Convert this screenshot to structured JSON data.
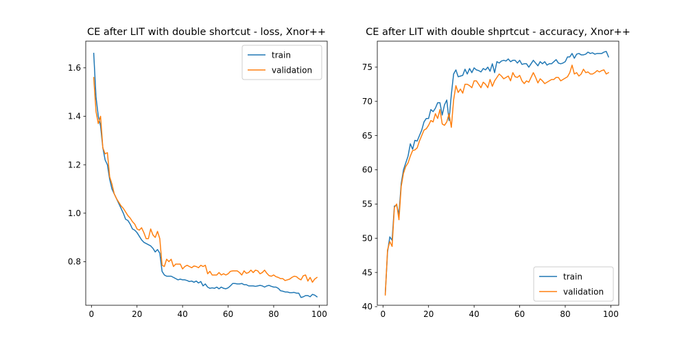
{
  "colors": {
    "train": "#1f77b4",
    "validation": "#ff7f0e",
    "axes": "#000000",
    "legend_border": "#cccccc"
  },
  "chart_data": [
    {
      "type": "line",
      "title": "CE after LIT with double shortcut - loss, Xnor++",
      "xlabel": "",
      "ylabel": "",
      "xlim": [
        -2.5,
        103.5
      ],
      "ylim": [
        0.62,
        1.71
      ],
      "xticks": [
        0,
        20,
        40,
        60,
        80,
        100
      ],
      "yticks": [
        0.8,
        1.0,
        1.2,
        1.4,
        1.6
      ],
      "ytick_labels": [
        "0.8",
        "1.0",
        "1.2",
        "1.4",
        "1.6"
      ],
      "grid": false,
      "legend_position": "top-right",
      "series": [
        {
          "name": "train",
          "x": [
            1,
            2,
            3,
            4,
            5,
            6,
            7,
            8,
            9,
            10,
            11,
            12,
            13,
            14,
            15,
            16,
            17,
            18,
            19,
            20,
            21,
            22,
            23,
            24,
            25,
            26,
            27,
            28,
            29,
            30,
            31,
            32,
            33,
            34,
            35,
            36,
            37,
            38,
            39,
            40,
            41,
            42,
            43,
            44,
            45,
            46,
            47,
            48,
            49,
            50,
            51,
            52,
            53,
            54,
            55,
            56,
            57,
            58,
            59,
            60,
            61,
            62,
            63,
            64,
            65,
            66,
            67,
            68,
            69,
            70,
            71,
            72,
            73,
            74,
            75,
            76,
            77,
            78,
            79,
            80,
            81,
            82,
            83,
            84,
            85,
            86,
            87,
            88,
            89,
            90,
            91,
            92,
            93,
            94,
            95,
            96,
            97,
            98,
            99
          ],
          "y": [
            1.66,
            1.48,
            1.4,
            1.36,
            1.27,
            1.22,
            1.2,
            1.14,
            1.1,
            1.08,
            1.06,
            1.04,
            1.02,
            1.0,
            0.975,
            0.97,
            0.955,
            0.935,
            0.93,
            0.92,
            0.905,
            0.89,
            0.88,
            0.875,
            0.87,
            0.865,
            0.855,
            0.84,
            0.85,
            0.835,
            0.76,
            0.745,
            0.74,
            0.74,
            0.74,
            0.735,
            0.73,
            0.725,
            0.728,
            0.725,
            0.725,
            0.722,
            0.718,
            0.72,
            0.715,
            0.72,
            0.712,
            0.718,
            0.7,
            0.708,
            0.695,
            0.69,
            0.692,
            0.69,
            0.695,
            0.688,
            0.695,
            0.69,
            0.688,
            0.692,
            0.7,
            0.71,
            0.71,
            0.708,
            0.708,
            0.71,
            0.705,
            0.705,
            0.7,
            0.7,
            0.7,
            0.698,
            0.7,
            0.702,
            0.7,
            0.695,
            0.7,
            0.702,
            0.698,
            0.695,
            0.695,
            0.69,
            0.68,
            0.678,
            0.675,
            0.675,
            0.672,
            0.672,
            0.673,
            0.67,
            0.67,
            0.652,
            0.655,
            0.66,
            0.66,
            0.655,
            0.665,
            0.662,
            0.655
          ]
        },
        {
          "name": "validation",
          "x": [
            1,
            2,
            3,
            4,
            5,
            6,
            7,
            8,
            9,
            10,
            11,
            12,
            13,
            14,
            15,
            16,
            17,
            18,
            19,
            20,
            21,
            22,
            23,
            24,
            25,
            26,
            27,
            28,
            29,
            30,
            31,
            32,
            33,
            34,
            35,
            36,
            37,
            38,
            39,
            40,
            41,
            42,
            43,
            44,
            45,
            46,
            47,
            48,
            49,
            50,
            51,
            52,
            53,
            54,
            55,
            56,
            57,
            58,
            59,
            60,
            61,
            62,
            63,
            64,
            65,
            66,
            67,
            68,
            69,
            70,
            71,
            72,
            73,
            74,
            75,
            76,
            77,
            78,
            79,
            80,
            81,
            82,
            83,
            84,
            85,
            86,
            87,
            88,
            89,
            90,
            91,
            92,
            93,
            94,
            95,
            96,
            97,
            98,
            99
          ],
          "y": [
            1.56,
            1.42,
            1.37,
            1.4,
            1.27,
            1.245,
            1.25,
            1.15,
            1.12,
            1.08,
            1.06,
            1.045,
            1.03,
            1.02,
            1.005,
            0.99,
            0.98,
            0.965,
            0.955,
            0.935,
            0.93,
            0.94,
            0.92,
            0.895,
            0.895,
            0.935,
            0.91,
            0.9,
            0.925,
            0.895,
            0.785,
            0.78,
            0.81,
            0.8,
            0.81,
            0.78,
            0.79,
            0.79,
            0.79,
            0.77,
            0.78,
            0.785,
            0.78,
            0.775,
            0.782,
            0.78,
            0.775,
            0.785,
            0.78,
            0.785,
            0.75,
            0.76,
            0.745,
            0.745,
            0.745,
            0.755,
            0.745,
            0.75,
            0.745,
            0.75,
            0.76,
            0.762,
            0.762,
            0.762,
            0.755,
            0.745,
            0.762,
            0.752,
            0.755,
            0.765,
            0.755,
            0.765,
            0.762,
            0.75,
            0.755,
            0.765,
            0.752,
            0.742,
            0.74,
            0.745,
            0.738,
            0.735,
            0.73,
            0.73,
            0.722,
            0.725,
            0.728,
            0.735,
            0.74,
            0.738,
            0.73,
            0.725,
            0.742,
            0.745,
            0.72,
            0.735,
            0.715,
            0.728,
            0.735
          ]
        }
      ]
    },
    {
      "type": "line",
      "title": "CE after LIT with double shprtcut - accuracy, Xnor++",
      "xlabel": "",
      "ylabel": "",
      "xlim": [
        -2.5,
        103.5
      ],
      "ylim": [
        40.2,
        78.8
      ],
      "xticks": [
        0,
        20,
        40,
        60,
        80,
        100
      ],
      "yticks": [
        40,
        45,
        50,
        55,
        60,
        65,
        70,
        75
      ],
      "ytick_labels": [
        "40",
        "45",
        "50",
        "55",
        "60",
        "65",
        "70",
        "75"
      ],
      "grid": false,
      "legend_position": "bottom-right",
      "series": [
        {
          "name": "train",
          "x": [
            1,
            2,
            3,
            4,
            5,
            6,
            7,
            8,
            9,
            10,
            11,
            12,
            13,
            14,
            15,
            16,
            17,
            18,
            19,
            20,
            21,
            22,
            23,
            24,
            25,
            26,
            27,
            28,
            29,
            30,
            31,
            32,
            33,
            34,
            35,
            36,
            37,
            38,
            39,
            40,
            41,
            42,
            43,
            44,
            45,
            46,
            47,
            48,
            49,
            50,
            51,
            52,
            53,
            54,
            55,
            56,
            57,
            58,
            59,
            60,
            61,
            62,
            63,
            64,
            65,
            66,
            67,
            68,
            69,
            70,
            71,
            72,
            73,
            74,
            75,
            76,
            77,
            78,
            79,
            80,
            81,
            82,
            83,
            84,
            85,
            86,
            87,
            88,
            89,
            90,
            91,
            92,
            93,
            94,
            95,
            96,
            97,
            98,
            99
          ],
          "y": [
            41.9,
            48.0,
            50.2,
            49.7,
            54.7,
            54.8,
            53.5,
            58.0,
            60.0,
            61.0,
            62.0,
            63.8,
            63.0,
            64.3,
            64.2,
            65.0,
            65.8,
            67.0,
            67.5,
            67.5,
            68.8,
            68.5,
            69.0,
            69.8,
            69.8,
            68.0,
            69.5,
            70.2,
            67.2,
            71.0,
            74.0,
            74.6,
            73.6,
            73.7,
            73.8,
            74.7,
            74.0,
            74.8,
            74.2,
            74.9,
            74.6,
            74.5,
            74.3,
            74.8,
            74.6,
            75.0,
            74.4,
            75.5,
            74.2,
            75.8,
            75.6,
            75.9,
            76.0,
            75.9,
            76.2,
            75.8,
            76.0,
            76.0,
            75.6,
            76.0,
            75.4,
            75.5,
            75.5,
            75.0,
            75.5,
            76.0,
            75.6,
            75.2,
            75.8,
            75.5,
            75.8,
            75.3,
            75.5,
            75.5,
            75.8,
            76.1,
            75.6,
            75.5,
            75.6,
            75.8,
            76.5,
            76.5,
            77.0,
            76.3,
            76.9,
            77.0,
            76.8,
            76.8,
            76.9,
            77.2,
            77.0,
            77.1,
            76.9,
            77.0,
            77.0,
            77.0,
            77.2,
            77.3,
            76.5
          ]
        },
        {
          "name": "validation",
          "x": [
            1,
            2,
            3,
            4,
            5,
            6,
            7,
            8,
            9,
            10,
            11,
            12,
            13,
            14,
            15,
            16,
            17,
            18,
            19,
            20,
            21,
            22,
            23,
            24,
            25,
            26,
            27,
            28,
            29,
            30,
            31,
            32,
            33,
            34,
            35,
            36,
            37,
            38,
            39,
            40,
            41,
            42,
            43,
            44,
            45,
            46,
            47,
            48,
            49,
            50,
            51,
            52,
            53,
            54,
            55,
            56,
            57,
            58,
            59,
            60,
            61,
            62,
            63,
            64,
            65,
            66,
            67,
            68,
            69,
            70,
            71,
            72,
            73,
            74,
            75,
            76,
            77,
            78,
            79,
            80,
            81,
            82,
            83,
            84,
            85,
            86,
            87,
            88,
            89,
            90,
            91,
            92,
            93,
            94,
            95,
            96,
            97,
            98,
            99
          ],
          "y": [
            41.7,
            48.3,
            49.5,
            48.8,
            54.5,
            55.0,
            52.7,
            57.6,
            59.5,
            60.5,
            61.0,
            62.0,
            62.8,
            62.9,
            63.2,
            64.2,
            65.0,
            65.8,
            66.0,
            66.5,
            67.2,
            67.0,
            68.2,
            67.5,
            68.8,
            66.7,
            66.5,
            67.0,
            68.2,
            66.2,
            70.2,
            72.3,
            71.3,
            71.8,
            71.2,
            72.5,
            72.5,
            72.3,
            72.0,
            73.0,
            73.0,
            72.5,
            72.0,
            72.8,
            72.5,
            72.0,
            73.2,
            72.2,
            73.0,
            73.5,
            74.0,
            73.7,
            73.3,
            73.5,
            73.7,
            73.0,
            74.2,
            73.6,
            73.5,
            73.8,
            73.0,
            72.6,
            73.0,
            72.8,
            73.5,
            74.2,
            73.5,
            72.7,
            73.3,
            73.0,
            72.6,
            72.8,
            73.0,
            73.2,
            73.2,
            73.5,
            73.5,
            73.0,
            73.2,
            73.4,
            73.6,
            74.2,
            75.3,
            74.0,
            74.2,
            73.7,
            74.0,
            74.7,
            74.2,
            74.3,
            74.0,
            74.0,
            74.2,
            74.5,
            74.3,
            74.5,
            74.6,
            74.0,
            74.2
          ]
        }
      ]
    }
  ]
}
